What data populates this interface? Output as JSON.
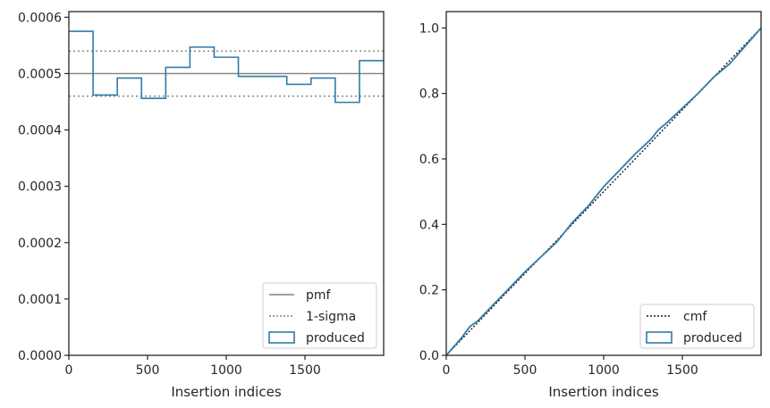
{
  "chart_data": [
    {
      "type": "line",
      "subtype": "step-histogram",
      "title": "",
      "xlabel": "Insertion indices",
      "ylabel": "",
      "xlim": [
        0,
        2000
      ],
      "ylim": [
        0,
        0.00061
      ],
      "x_ticks": [
        0,
        500,
        1000,
        1500
      ],
      "x_tick_labels": [
        "0",
        "500",
        "1000",
        "1500"
      ],
      "y_ticks": [
        0,
        0.0001,
        0.0002,
        0.0003,
        0.0004,
        0.0005,
        0.0006
      ],
      "y_tick_labels": [
        "0.0000",
        "0.0001",
        "0.0002",
        "0.0003",
        "0.0004",
        "0.0005",
        "0.0006"
      ],
      "grid": false,
      "legend_position": "bottom-right",
      "bin_edges": [
        0,
        153.8,
        307.7,
        461.5,
        615.4,
        769.2,
        923.1,
        1076.9,
        1230.8,
        1384.6,
        1538.5,
        1692.3,
        1846.2,
        2000
      ],
      "series": [
        {
          "name": "pmf",
          "style": "solid",
          "color": "#808080",
          "value": 0.0005
        },
        {
          "name": "1-sigma",
          "style": "dotted",
          "color": "#808080",
          "values": [
            0.00046,
            0.00054
          ]
        },
        {
          "name": "produced",
          "style": "step",
          "color": "#2e7ba8",
          "values": [
            0.000575,
            0.000462,
            0.000492,
            0.000456,
            0.000511,
            0.000547,
            0.000529,
            0.000495,
            0.000495,
            0.000481,
            0.000492,
            0.000449,
            0.000523
          ]
        }
      ]
    },
    {
      "type": "line",
      "title": "",
      "xlabel": "Insertion indices",
      "ylabel": "",
      "xlim": [
        0,
        2000
      ],
      "ylim": [
        0,
        1.05
      ],
      "x_ticks": [
        0,
        500,
        1000,
        1500
      ],
      "x_tick_labels": [
        "0",
        "500",
        "1000",
        "1500"
      ],
      "y_ticks": [
        0,
        0.2,
        0.4,
        0.6,
        0.8,
        1.0
      ],
      "y_tick_labels": [
        "0.0",
        "0.2",
        "0.4",
        "0.6",
        "0.8",
        "1.0"
      ],
      "grid": false,
      "legend_position": "bottom-right",
      "series": [
        {
          "name": "cmf",
          "style": "dotted",
          "color": "#1a1a1a",
          "x": [
            0,
            2000
          ],
          "y": [
            0,
            1.0
          ]
        },
        {
          "name": "produced",
          "style": "solid",
          "color": "#2e7ba8",
          "x": [
            0,
            100,
            150,
            200,
            300,
            400,
            500,
            600,
            700,
            800,
            900,
            1000,
            1100,
            1200,
            1300,
            1350,
            1400,
            1500,
            1600,
            1700,
            1800,
            1900,
            2000
          ],
          "y": [
            0,
            0.055,
            0.088,
            0.105,
            0.155,
            0.205,
            0.255,
            0.3,
            0.345,
            0.405,
            0.455,
            0.515,
            0.565,
            0.615,
            0.66,
            0.69,
            0.71,
            0.755,
            0.8,
            0.85,
            0.89,
            0.945,
            1.0
          ]
        }
      ]
    }
  ]
}
